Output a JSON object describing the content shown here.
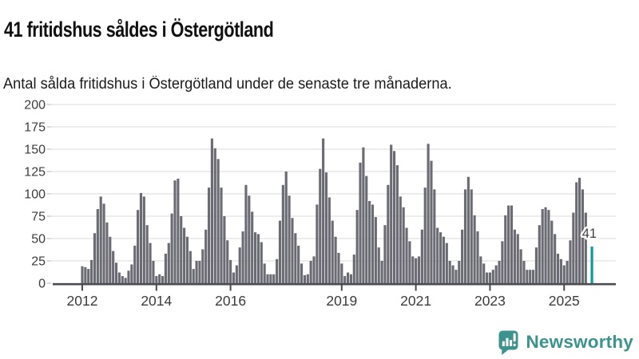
{
  "title": "41 fritidshus såldes i Östergötland",
  "subtitle": "Antal sålda fritidshus i Östergötland under de senaste tre månaderna.",
  "chart_data": {
    "type": "bar",
    "title": "41 fritidshus såldes i Östergötland",
    "subtitle": "Antal sålda fritidshus i Östergötland under de senaste tre månaderna.",
    "x_unit": "month",
    "x_start": "2012-01",
    "ylim": [
      0,
      200
    ],
    "y_ticks": [
      0,
      25,
      50,
      75,
      100,
      125,
      150,
      175,
      200
    ],
    "grid": true,
    "x_ticks": [
      {
        "label": "2012",
        "month_index": 0
      },
      {
        "label": "2014",
        "month_index": 24
      },
      {
        "label": "2016",
        "month_index": 48
      },
      {
        "label": "2019",
        "month_index": 84
      },
      {
        "label": "2021",
        "month_index": 108
      },
      {
        "label": "2023",
        "month_index": 132
      },
      {
        "label": "2025",
        "month_index": 156
      }
    ],
    "values": [
      19,
      18,
      16,
      26,
      56,
      83,
      97,
      89,
      68,
      52,
      36,
      23,
      12,
      8,
      6,
      14,
      21,
      42,
      82,
      101,
      97,
      65,
      45,
      25,
      8,
      10,
      8,
      33,
      45,
      78,
      115,
      117,
      75,
      62,
      52,
      36,
      16,
      25,
      25,
      38,
      60,
      107,
      162,
      151,
      139,
      107,
      75,
      48,
      26,
      12,
      20,
      40,
      58,
      110,
      98,
      80,
      57,
      55,
      46,
      22,
      10,
      10,
      10,
      27,
      70,
      110,
      125,
      98,
      73,
      56,
      42,
      22,
      9,
      10,
      25,
      30,
      88,
      128,
      162,
      124,
      96,
      70,
      52,
      34,
      22,
      8,
      12,
      10,
      32,
      82,
      135,
      152,
      120,
      92,
      88,
      74,
      40,
      25,
      65,
      110,
      155,
      148,
      132,
      97,
      85,
      62,
      47,
      30,
      28,
      30,
      60,
      107,
      156,
      137,
      105,
      62,
      57,
      52,
      45,
      25,
      20,
      15,
      25,
      60,
      105,
      119,
      105,
      76,
      58,
      30,
      22,
      12,
      12,
      15,
      20,
      25,
      47,
      76,
      87,
      87,
      60,
      55,
      38,
      25,
      15,
      15,
      15,
      40,
      65,
      83,
      85,
      82,
      70,
      55,
      33,
      27,
      20,
      25,
      48,
      79,
      113,
      118,
      105,
      79
    ],
    "highlight": {
      "value": 41,
      "label": "41",
      "gap_slots": 1
    },
    "colors": {
      "bar": "#6b6b74",
      "highlight": "#00a099",
      "grid": "#e2e2e2",
      "axis": "#4b4b52",
      "tick": "#b8b8b8",
      "label_text": "#3c3c3c"
    }
  },
  "branding": {
    "logo_text": "Newsworthy",
    "logo_color": "#3a948d",
    "logo_icon": "newsworthy-speech-bubble-bar-chart-icon"
  }
}
